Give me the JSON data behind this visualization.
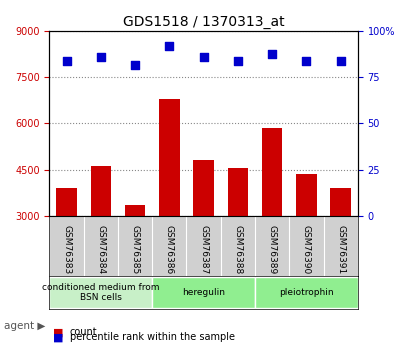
{
  "title": "GDS1518 / 1370313_at",
  "samples": [
    "GSM76383",
    "GSM76384",
    "GSM76385",
    "GSM76386",
    "GSM76387",
    "GSM76388",
    "GSM76389",
    "GSM76390",
    "GSM76391"
  ],
  "counts": [
    3900,
    4600,
    3350,
    6800,
    4800,
    4550,
    5850,
    4350,
    3900
  ],
  "percentiles": [
    84,
    86,
    82,
    92,
    86,
    84,
    88,
    84,
    84
  ],
  "ylim_left": [
    3000,
    9000
  ],
  "ylim_right": [
    0,
    100
  ],
  "yticks_left": [
    3000,
    4500,
    6000,
    7500,
    9000
  ],
  "yticks_right": [
    0,
    25,
    50,
    75,
    100
  ],
  "bar_color": "#cc0000",
  "dot_color": "#0000cc",
  "agent_groups": [
    {
      "label": "conditioned medium from\nBSN cells",
      "start": 0,
      "end": 3,
      "color": "#c8f0c8"
    },
    {
      "label": "heregulin",
      "start": 3,
      "end": 6,
      "color": "#90ee90"
    },
    {
      "label": "pleiotrophin",
      "start": 6,
      "end": 9,
      "color": "#90ee90"
    }
  ],
  "legend_count_color": "#cc0000",
  "legend_dot_color": "#0000cc",
  "grid_dotted_color": "#888888",
  "bg_plot": "#ffffff",
  "bg_tick_area": "#d0d0d0",
  "bar_bottom": 3000
}
